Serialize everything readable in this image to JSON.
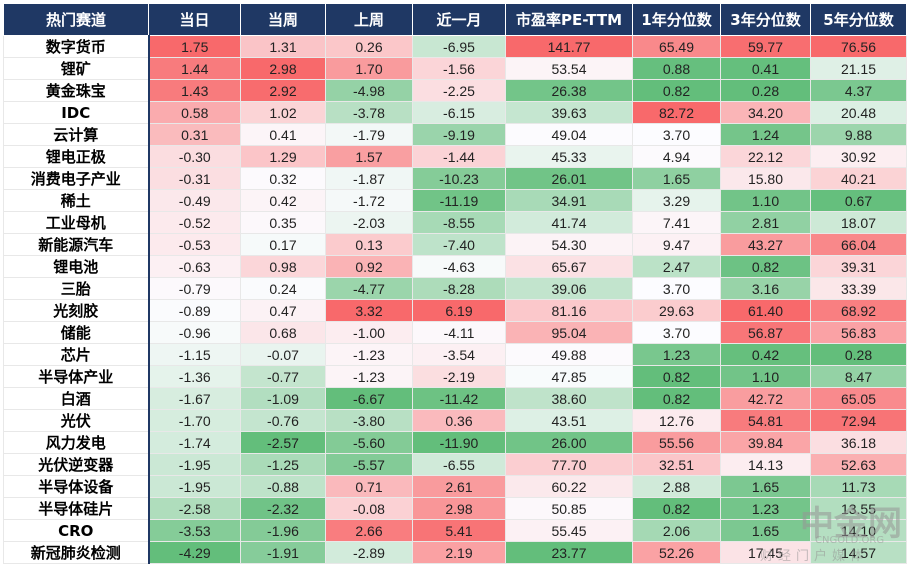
{
  "table": {
    "header": [
      "热门赛道",
      "当日",
      "当周",
      "上周",
      "近一月",
      "市盈率PE-TTM",
      "1年分位数",
      "3年分位数",
      "5年分位数"
    ],
    "rows": [
      [
        "数字货币",
        "1.75",
        "1.31",
        "0.26",
        "-6.95",
        "141.77",
        "65.49",
        "59.77",
        "76.56"
      ],
      [
        "锂矿",
        "1.44",
        "2.98",
        "1.70",
        "-1.56",
        "53.54",
        "0.88",
        "0.41",
        "21.15"
      ],
      [
        "黄金珠宝",
        "1.43",
        "2.92",
        "-4.98",
        "-2.25",
        "26.38",
        "0.82",
        "0.28",
        "4.37"
      ],
      [
        "IDC",
        "0.58",
        "1.02",
        "-3.78",
        "-6.15",
        "39.63",
        "82.72",
        "34.20",
        "20.48"
      ],
      [
        "云计算",
        "0.31",
        "0.41",
        "-1.79",
        "-9.19",
        "49.04",
        "3.70",
        "1.24",
        "9.88"
      ],
      [
        "锂电正极",
        "-0.30",
        "1.29",
        "1.57",
        "-1.44",
        "45.33",
        "4.94",
        "22.12",
        "30.92"
      ],
      [
        "消费电子产业",
        "-0.31",
        "0.32",
        "-1.87",
        "-10.23",
        "26.01",
        "1.65",
        "15.80",
        "40.21"
      ],
      [
        "稀土",
        "-0.49",
        "0.42",
        "-1.72",
        "-11.19",
        "34.91",
        "3.29",
        "1.10",
        "0.67"
      ],
      [
        "工业母机",
        "-0.52",
        "0.35",
        "-2.03",
        "-8.55",
        "41.74",
        "7.41",
        "2.81",
        "18.07"
      ],
      [
        "新能源汽车",
        "-0.53",
        "0.17",
        "0.13",
        "-7.40",
        "54.30",
        "9.47",
        "43.27",
        "66.04"
      ],
      [
        "锂电池",
        "-0.63",
        "0.98",
        "0.92",
        "-4.63",
        "65.67",
        "2.47",
        "0.82",
        "39.31"
      ],
      [
        "三胎",
        "-0.79",
        "0.24",
        "-4.77",
        "-8.28",
        "39.06",
        "3.70",
        "3.16",
        "33.39"
      ],
      [
        "光刻胶",
        "-0.89",
        "0.47",
        "3.32",
        "6.19",
        "81.16",
        "29.63",
        "61.40",
        "68.92"
      ],
      [
        "储能",
        "-0.96",
        "0.68",
        "-1.00",
        "-4.11",
        "95.04",
        "3.70",
        "56.87",
        "56.83"
      ],
      [
        "芯片",
        "-1.15",
        "-0.07",
        "-1.23",
        "-3.54",
        "49.88",
        "1.23",
        "0.42",
        "0.28"
      ],
      [
        "半导体产业",
        "-1.36",
        "-0.77",
        "-1.23",
        "-2.19",
        "47.85",
        "0.82",
        "1.10",
        "8.47"
      ],
      [
        "白酒",
        "-1.67",
        "-1.09",
        "-6.67",
        "-11.42",
        "38.60",
        "0.82",
        "42.72",
        "65.05"
      ],
      [
        "光伏",
        "-1.70",
        "-0.76",
        "-3.80",
        "0.36",
        "43.51",
        "12.76",
        "54.81",
        "72.94"
      ],
      [
        "风力发电",
        "-1.74",
        "-2.57",
        "-5.60",
        "-11.90",
        "26.00",
        "55.56",
        "39.84",
        "36.18"
      ],
      [
        "光伏逆变器",
        "-1.95",
        "-1.25",
        "-5.57",
        "-6.55",
        "77.70",
        "32.51",
        "14.13",
        "52.63"
      ],
      [
        "半导体设备",
        "-1.95",
        "-0.88",
        "0.71",
        "2.61",
        "60.22",
        "2.88",
        "1.65",
        "11.73"
      ],
      [
        "半导体硅片",
        "-2.58",
        "-2.32",
        "-0.08",
        "2.98",
        "50.85",
        "0.82",
        "1.23",
        "13.55"
      ],
      [
        "CRO",
        "-3.53",
        "-1.96",
        "2.66",
        "5.41",
        "55.45",
        "2.06",
        "1.65",
        "14.10"
      ],
      [
        "新冠肺炎检测",
        "-4.29",
        "-1.91",
        "-2.89",
        "2.19",
        "23.77",
        "52.26",
        "17.45",
        "14.57"
      ]
    ]
  },
  "watermark": {
    "logo": "中金网",
    "site": "CNGOLD.ORG",
    "slogan": "财经门户媒体"
  }
}
